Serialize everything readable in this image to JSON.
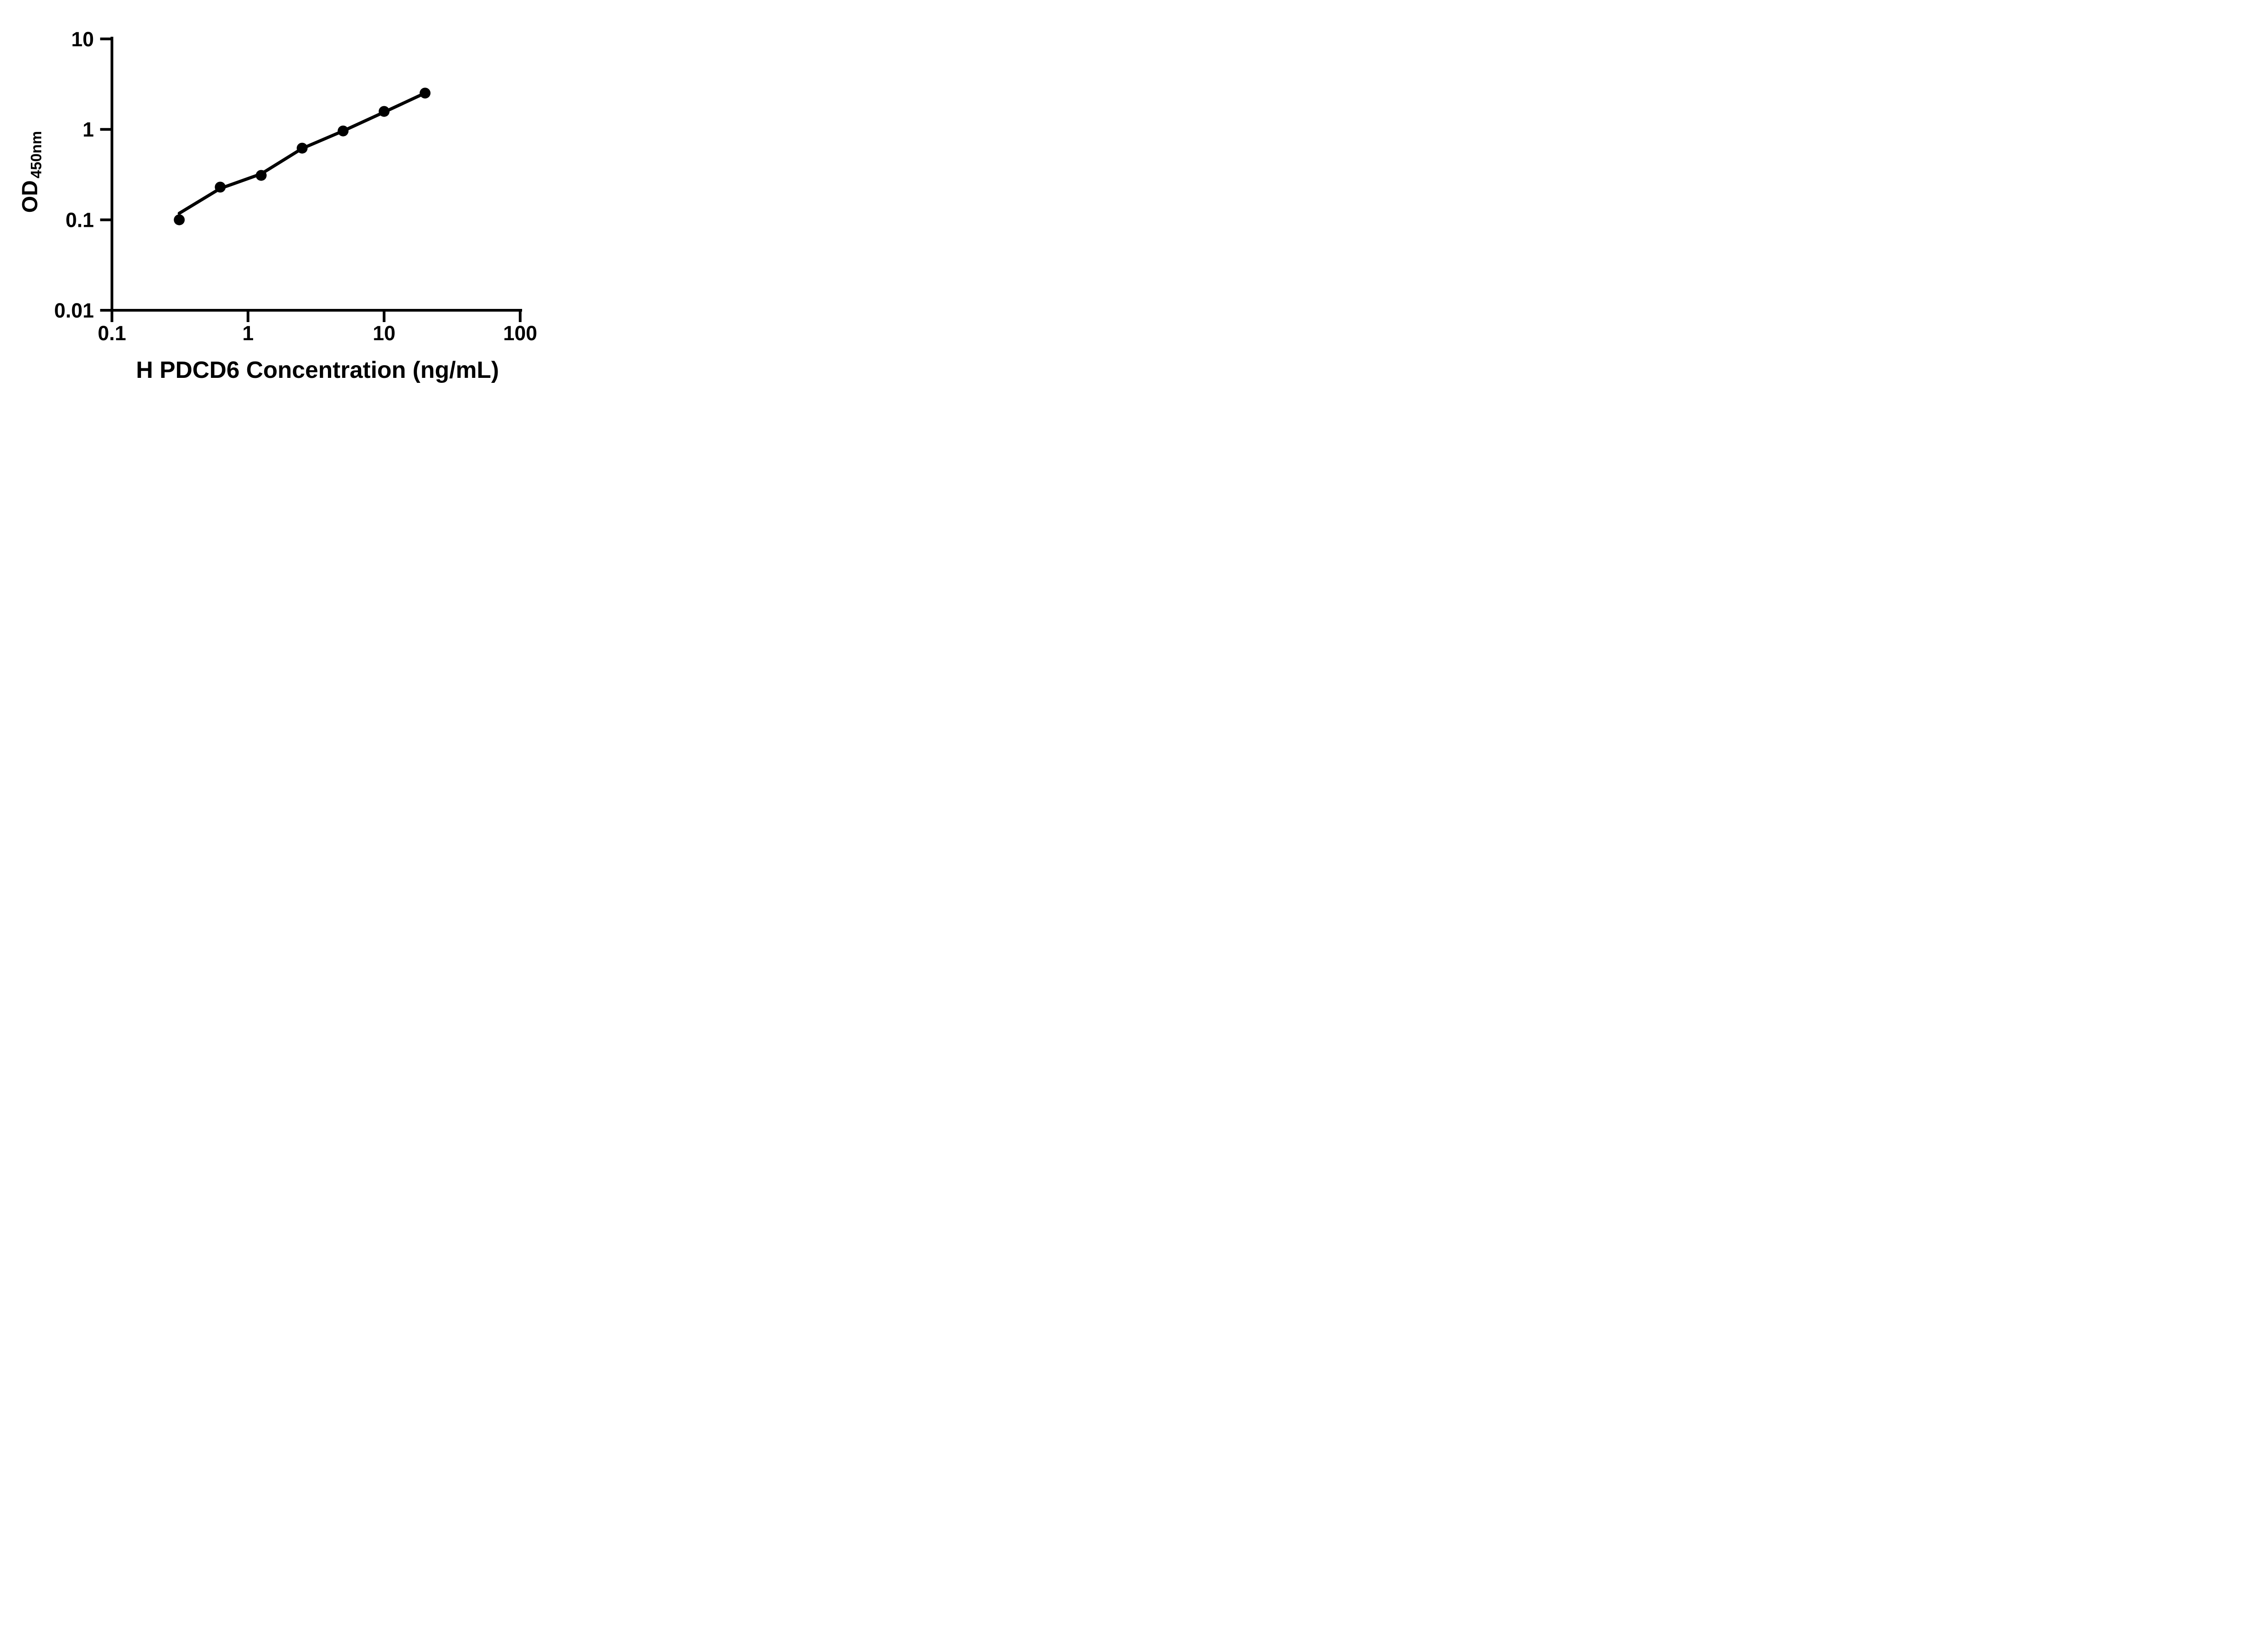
{
  "figure": {
    "background": "#ffffff",
    "foreground": "#000000",
    "x_axis": {
      "title": "H PDCD6 Concentration (ng/mL)",
      "scale": "log",
      "range": [
        0.1,
        100
      ],
      "ticks": [
        {
          "value": 0.1,
          "label": "0.1"
        },
        {
          "value": 1,
          "label": "1"
        },
        {
          "value": 10,
          "label": "10"
        },
        {
          "value": 100,
          "label": "100"
        }
      ]
    },
    "y_axis": {
      "title_main": "OD",
      "title_sub": "450nm",
      "scale": "log",
      "range": [
        0.01,
        10
      ],
      "ticks": [
        {
          "value": 10,
          "label": "10"
        },
        {
          "value": 1,
          "label": "1"
        },
        {
          "value": 0.1,
          "label": "0.1"
        },
        {
          "value": 0.01,
          "label": "0.01"
        }
      ]
    }
  },
  "chart_data": {
    "type": "scatter",
    "title": "",
    "xlabel": "H PDCD6 Concentration (ng/mL)",
    "ylabel": "OD450nm",
    "x_scale": "log",
    "y_scale": "log",
    "xlim": [
      0.1,
      100
    ],
    "ylim": [
      0.01,
      10
    ],
    "grid": false,
    "legend": "none",
    "marker_color": "#000000",
    "line_color": "#000000",
    "series": [
      {
        "name": "standard-points",
        "role": "points",
        "x": [
          0.3125,
          0.625,
          1.25,
          2.5,
          5,
          10,
          20
        ],
        "y": [
          0.1,
          0.23,
          0.31,
          0.62,
          0.96,
          1.58,
          2.52
        ]
      },
      {
        "name": "fit-line",
        "role": "line",
        "x": [
          0.3125,
          0.625,
          1.25,
          2.5,
          5,
          10,
          20
        ],
        "y": [
          0.118,
          0.222,
          0.322,
          0.615,
          0.96,
          1.55,
          2.52
        ]
      }
    ]
  }
}
